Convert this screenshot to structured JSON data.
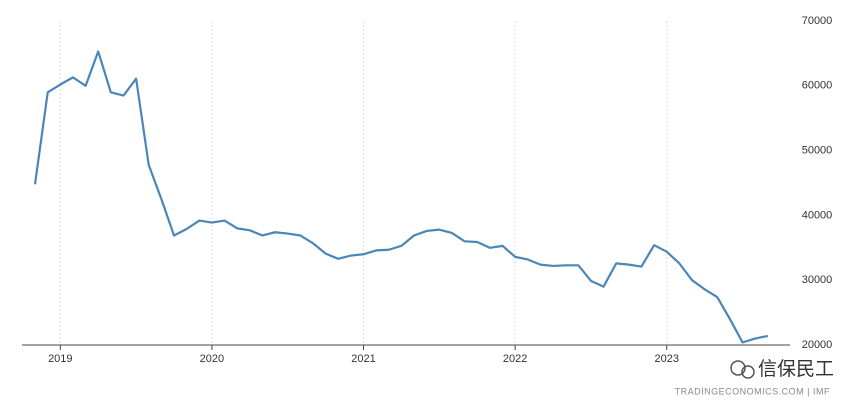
{
  "chart_data": {
    "type": "line",
    "x": [
      2018.833,
      2018.917,
      2019.0,
      2019.083,
      2019.167,
      2019.25,
      2019.333,
      2019.417,
      2019.5,
      2019.583,
      2019.667,
      2019.75,
      2019.833,
      2019.917,
      2020.0,
      2020.083,
      2020.167,
      2020.25,
      2020.333,
      2020.417,
      2020.5,
      2020.583,
      2020.667,
      2020.75,
      2020.833,
      2020.917,
      2021.0,
      2021.083,
      2021.167,
      2021.25,
      2021.333,
      2021.417,
      2021.5,
      2021.583,
      2021.667,
      2021.75,
      2021.833,
      2021.917,
      2022.0,
      2022.083,
      2022.167,
      2022.25,
      2022.333,
      2022.417,
      2022.5,
      2022.583,
      2022.667,
      2022.75,
      2022.833,
      2022.917,
      2023.0,
      2023.083,
      2023.167,
      2023.25,
      2023.333,
      2023.417,
      2023.5,
      2023.583,
      2023.667
    ],
    "series": [
      {
        "color": "#4a86b8",
        "values": [
          44800,
          59000,
          60200,
          61300,
          60000,
          65300,
          59000,
          58500,
          61100,
          47800,
          42500,
          36900,
          37900,
          39200,
          38900,
          39200,
          38000,
          37700,
          36900,
          37400,
          37200,
          36900,
          35700,
          34100,
          33300,
          33800,
          34000,
          34600,
          34700,
          35300,
          36900,
          37600,
          37800,
          37300,
          36000,
          35900,
          35000,
          35300,
          33600,
          33200,
          32400,
          32200,
          32300,
          32300,
          29900,
          29000,
          32600,
          32400,
          32100,
          35400,
          34400,
          32600,
          30000,
          28600,
          27400,
          24000,
          20400,
          21000,
          21400
        ]
      }
    ],
    "xlim": [
      2018.8,
      2023.8
    ],
    "xticks": [
      2019,
      2020,
      2021,
      2022,
      2023
    ],
    "ylim": [
      20000,
      70000
    ],
    "yticks": [
      20000,
      30000,
      40000,
      50000,
      60000,
      70000
    ],
    "grid": true,
    "source": "TRADINGECONOMICS.COM | IMF",
    "watermark": "信保民工"
  }
}
